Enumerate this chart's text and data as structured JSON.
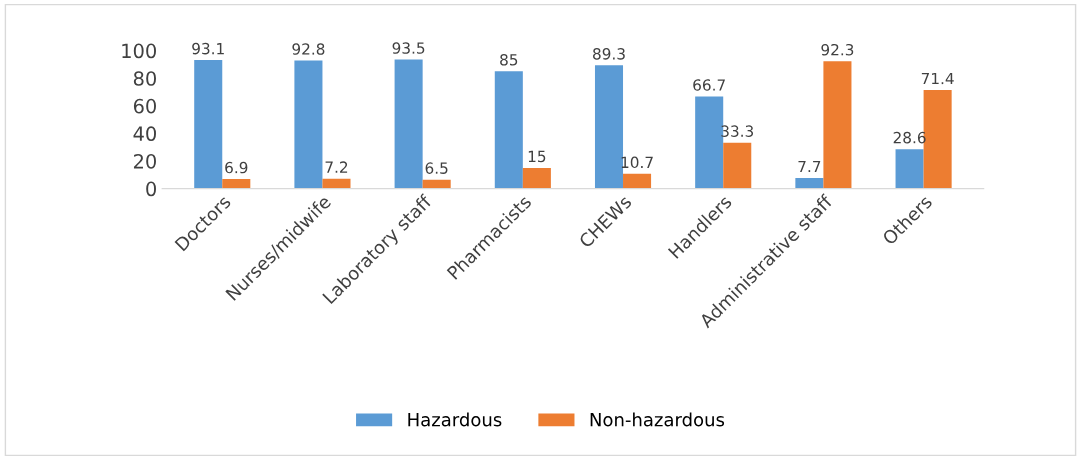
{
  "chart_data": {
    "type": "bar",
    "categories": [
      "Doctors",
      "Nurses/midwife",
      "Laboratory staff",
      "Pharmacists",
      "CHEWs",
      "Handlers",
      "Administrative staff",
      "Others"
    ],
    "series": [
      {
        "name": "Hazardous",
        "color": "#5b9bd5",
        "values": [
          93.1,
          92.8,
          93.5,
          85,
          89.3,
          66.7,
          7.7,
          28.6
        ]
      },
      {
        "name": "Non-hazardous",
        "color": "#ed7d31",
        "values": [
          6.9,
          7.2,
          6.5,
          15,
          10.7,
          33.3,
          92.3,
          71.4
        ]
      }
    ],
    "ylim": [
      0,
      100
    ],
    "yticks": [
      0,
      20,
      40,
      60,
      80,
      100
    ],
    "data_labels": true,
    "legend": "bottom",
    "grid": false
  }
}
